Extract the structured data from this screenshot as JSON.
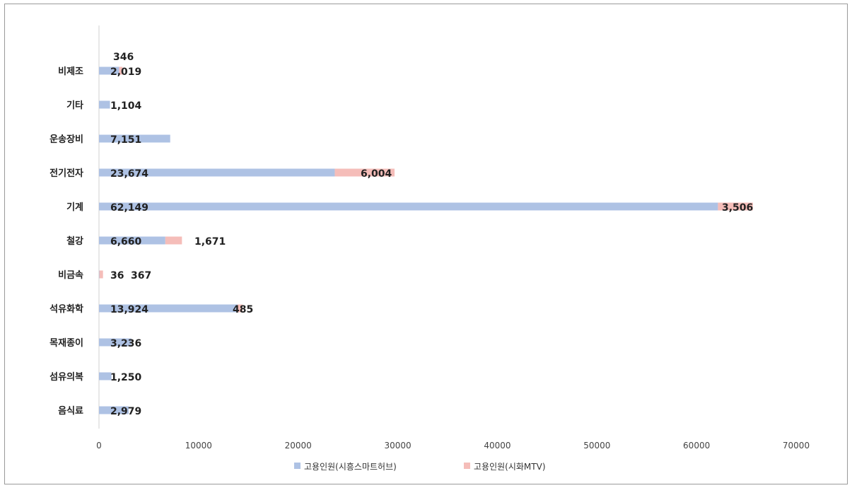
{
  "chart_data": {
    "type": "bar",
    "orientation": "horizontal",
    "stacked": true,
    "categories": [
      "음식료",
      "섬유의복",
      "목재종이",
      "석유화학",
      "비금속",
      "철강",
      "기계",
      "전기전자",
      "운송장비",
      "기타",
      "비제조"
    ],
    "series": [
      {
        "name": "고용인원(시흥스마트허브)",
        "color": "#aec2e4",
        "values": [
          2979,
          1250,
          3236,
          13924,
          36,
          6660,
          62149,
          23674,
          7151,
          1104,
          2019
        ],
        "labels": [
          "2,979",
          "1,250",
          "3,236",
          "13,924",
          "36",
          "6,660",
          "62,149",
          "23,674",
          "7,151",
          "1,104",
          "2,019"
        ]
      },
      {
        "name": "고용인원(시화MTV)",
        "color": "#f5bdb9",
        "values": [
          0,
          0,
          0,
          485,
          367,
          1671,
          3506,
          6004,
          0,
          0,
          346
        ],
        "labels": [
          "",
          "",
          "",
          "485",
          "367",
          "1,671",
          "3,506",
          "6,004",
          "",
          "",
          "346"
        ]
      }
    ],
    "xlim": [
      0,
      70000
    ],
    "x_ticks": [
      "0",
      "10000",
      "20000",
      "30000",
      "40000",
      "50000",
      "60000",
      "70000"
    ],
    "legend_position": "bottom",
    "grid": false,
    "title": "",
    "xlabel": "",
    "ylabel": ""
  }
}
